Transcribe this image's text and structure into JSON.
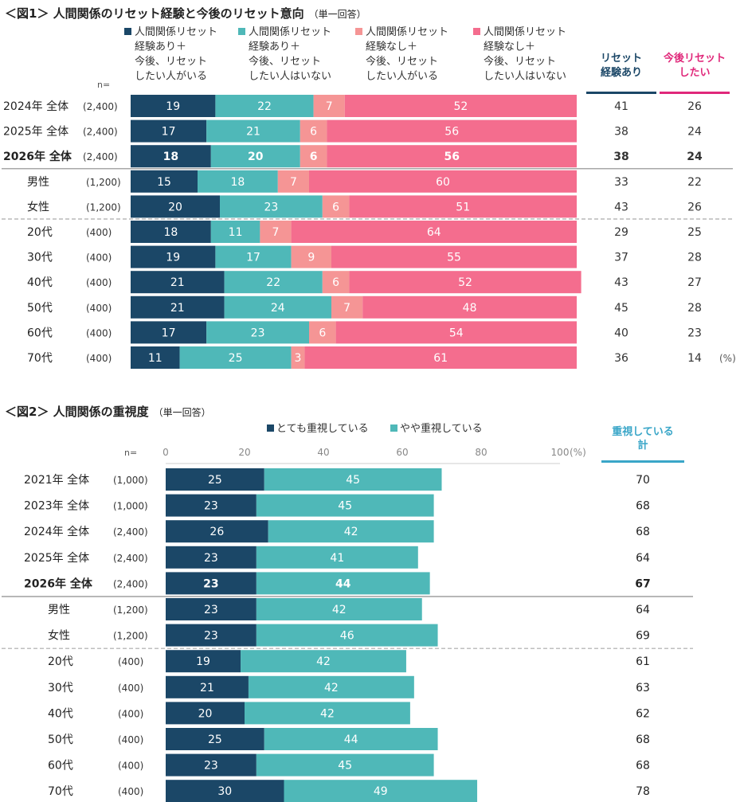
{
  "chart_data": [
    {
      "type": "bar",
      "orientation": "horizontal",
      "stacked": true,
      "title": "＜図1＞ 人間関係のリセット経験と今後のリセット意向",
      "subtitle": "（単一回答）",
      "n_label": "n=",
      "unit_label": "(%)",
      "colors": [
        "#1b4767",
        "#4fb8b8",
        "#f59595",
        "#f46d8e"
      ],
      "series": [
        {
          "name": "人間関係リセット経験あり＋今後、リセットしたい人がいる",
          "lines": [
            "人間関係リセット",
            "経験あり＋",
            "今後、リセット",
            "したい人がいる"
          ],
          "values": [
            19,
            17,
            18,
            15,
            20,
            18,
            19,
            21,
            21,
            17,
            11
          ]
        },
        {
          "name": "人間関係リセット経験あり＋今後、リセットしたい人はいない",
          "lines": [
            "人間関係リセット",
            "経験あり＋",
            "今後、リセット",
            "したい人はいない"
          ],
          "values": [
            22,
            21,
            20,
            18,
            23,
            11,
            17,
            22,
            24,
            23,
            25
          ]
        },
        {
          "name": "人間関係リセット経験なし＋今後、リセットしたい人がいる",
          "lines": [
            "人間関係リセット",
            "経験なし＋",
            "今後、リセット",
            "したい人がいる"
          ],
          "values": [
            7,
            6,
            6,
            7,
            6,
            7,
            9,
            6,
            7,
            6,
            3
          ]
        },
        {
          "name": "人間関係リセット経験なし＋今後、リセットしたい人はいない",
          "lines": [
            "人間関係リセット",
            "経験なし＋",
            "今後、リセット",
            "したい人はいない"
          ],
          "values": [
            52,
            56,
            56,
            60,
            51,
            64,
            55,
            52,
            48,
            54,
            61
          ]
        }
      ],
      "categories": [
        "2024年 全体",
        "2025年 全体",
        "2026年 全体",
        "男性",
        "女性",
        "20代",
        "30代",
        "40代",
        "50代",
        "60代",
        "70代"
      ],
      "n": [
        "(2,400)",
        "(2,400)",
        "(2,400)",
        "(1,200)",
        "(1,200)",
        "(400)",
        "(400)",
        "(400)",
        "(400)",
        "(400)",
        "(400)"
      ],
      "highlight_index": 2,
      "summary_columns": [
        {
          "header": [
            "リセット",
            "経験あり"
          ],
          "color": "#1b4767",
          "values": [
            41,
            38,
            38,
            33,
            43,
            29,
            37,
            43,
            45,
            40,
            36
          ]
        },
        {
          "header": [
            "今後リセット",
            "したい"
          ],
          "color": "#e0287a",
          "values": [
            26,
            24,
            24,
            22,
            26,
            25,
            28,
            27,
            28,
            23,
            14
          ]
        }
      ],
      "xlim": [
        0,
        100
      ]
    },
    {
      "type": "bar",
      "orientation": "horizontal",
      "stacked": true,
      "title": "＜図2＞ 人間関係の重視度",
      "subtitle": "（単一回答）",
      "n_label": "n=",
      "unit_label": "(%)",
      "colors": [
        "#1b4767",
        "#4fb8b8"
      ],
      "series": [
        {
          "name": "とても重視している",
          "values": [
            25,
            23,
            26,
            23,
            23,
            23,
            23,
            19,
            21,
            20,
            25,
            23,
            30
          ]
        },
        {
          "name": "やや重視している",
          "values": [
            45,
            45,
            42,
            41,
            44,
            42,
            46,
            42,
            42,
            42,
            44,
            45,
            49
          ]
        }
      ],
      "categories": [
        "2021年 全体",
        "2023年 全体",
        "2024年 全体",
        "2025年 全体",
        "2026年 全体",
        "男性",
        "女性",
        "20代",
        "30代",
        "40代",
        "50代",
        "60代",
        "70代"
      ],
      "n": [
        "(1,000)",
        "(1,000)",
        "(2,400)",
        "(2,400)",
        "(2,400)",
        "(1,200)",
        "(1,200)",
        "(400)",
        "(400)",
        "(400)",
        "(400)",
        "(400)",
        "(400)"
      ],
      "highlight_index": 4,
      "axis_ticks": [
        0,
        20,
        40,
        60,
        80,
        100
      ],
      "summary_columns": [
        {
          "header": [
            "重視している",
            "計"
          ],
          "color": "#3aa6c8",
          "values": [
            70,
            68,
            68,
            64,
            67,
            64,
            69,
            61,
            63,
            62,
            68,
            68,
            78
          ]
        }
      ],
      "xlim": [
        0,
        100
      ]
    }
  ]
}
